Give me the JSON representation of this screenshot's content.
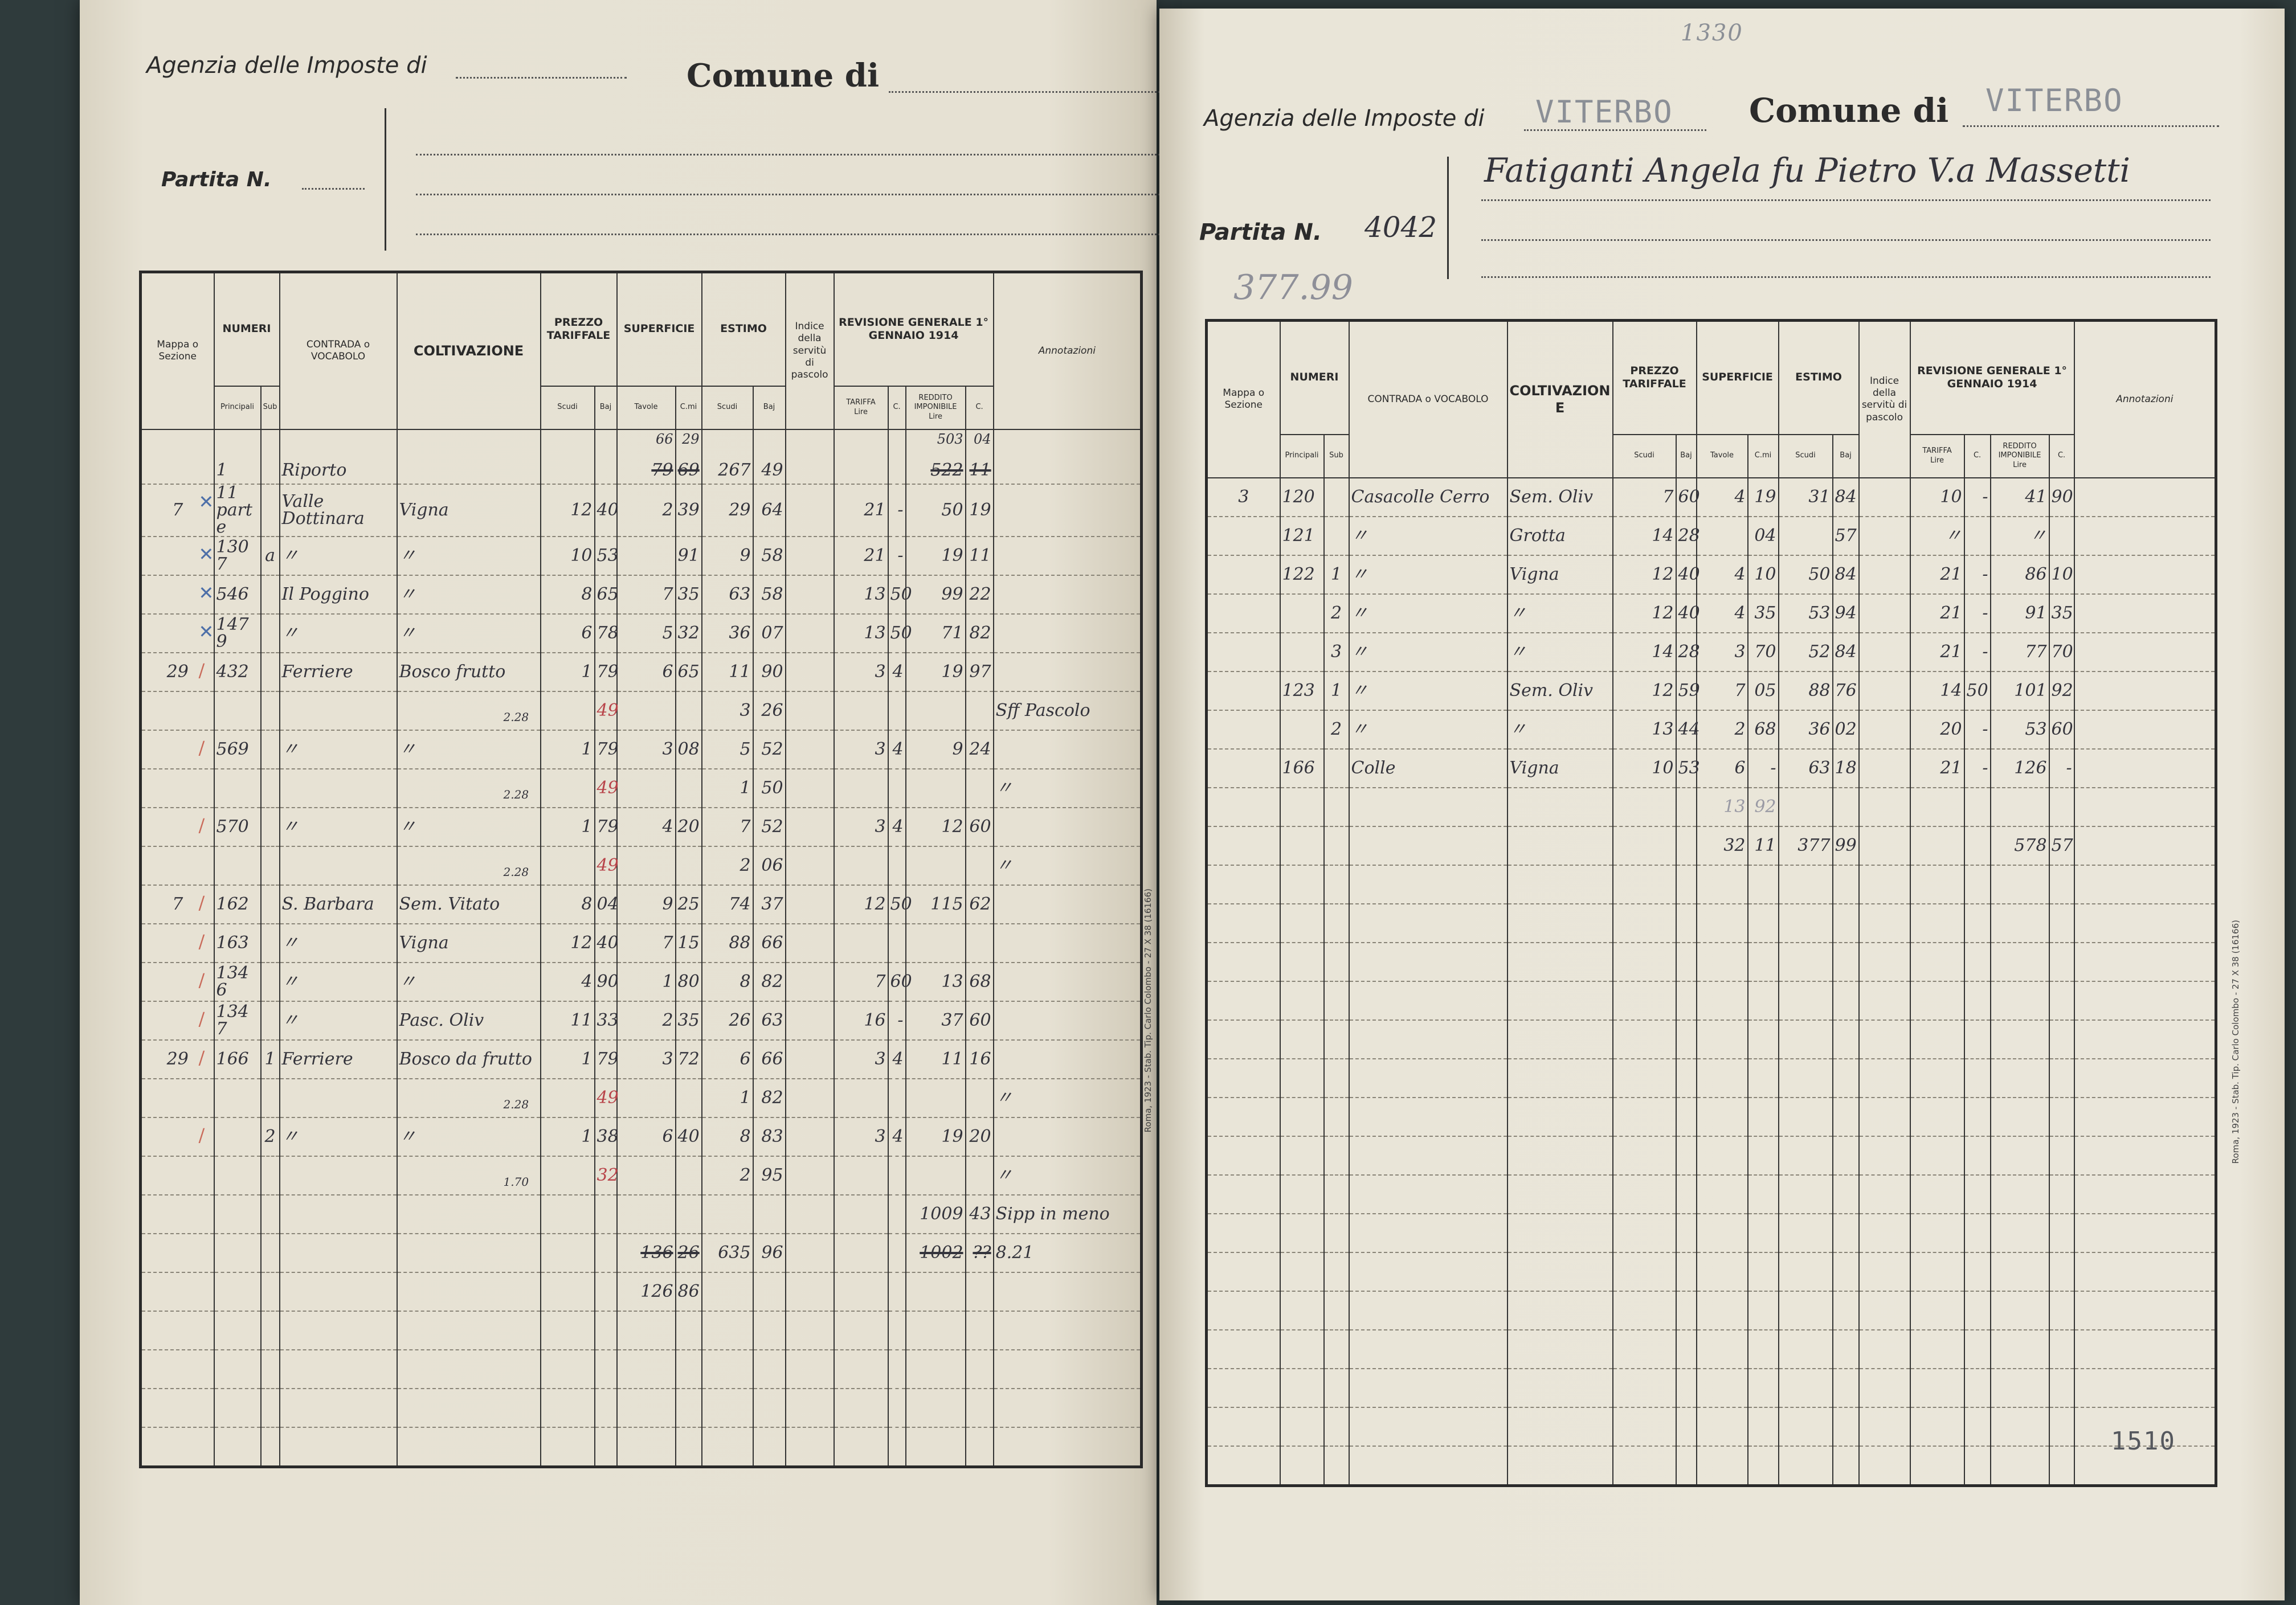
{
  "headers": {
    "mappa": "Mappa o Sezione",
    "numeri": "NUMERI",
    "principali": "Principali",
    "sub": "Sub",
    "contrada": "CONTRADA o VOCABOLO",
    "coltivazione": "COLTIVAZIONE",
    "prezzo": "PREZZO TARIFFALE",
    "superficie": "SUPERFICIE",
    "estimo": "ESTIMO",
    "scudi": "Scudi",
    "baj": "Baj",
    "tavole": "Tavole",
    "cmi": "C.mi",
    "indice": "Indice della servitù di pascolo",
    "revisione": "REVISIONE GENERALE 1° GENNAIO 1914",
    "tariffa": "TARIFFA",
    "reddito": "REDDITO IMPONIBILE",
    "lire": "Lire",
    "c": "C.",
    "annotazioni": "Annotazioni"
  },
  "left_page": {
    "agenzia_label": "Agenzia delle Imposte di",
    "comune_label": "Comune di",
    "partita_label": "Partita N.",
    "colophon": "Roma, 1923 - Stab. Tip. Carlo Colombo - 27 X 38 (16166)",
    "rows": [
      {
        "principali": "1",
        "contrada": "Riporto",
        "sup_tavole": "79",
        "sup_cmi": "69",
        "estimo_scudi": "267",
        "estimo_baj": "49",
        "reddito_lire": "522",
        "reddito_c": "11",
        "struck": [
          "sup_tavole",
          "sup_cmi",
          "reddito_lire",
          "reddito_c"
        ],
        "above": {
          "sup_tavole": "66",
          "sup_cmi": "29",
          "reddito_lire": "503",
          "reddito_c": "04"
        }
      },
      {
        "mark": "blue-cross",
        "mappa": "7",
        "principali": "11 parte",
        "contrada": "Valle Dottinara",
        "coltivazione": "Vigna",
        "prezzo_scudi": "12",
        "prezzo_baj": "40",
        "sup_tavole": "2",
        "sup_cmi": "39",
        "estimo_scudi": "29",
        "estimo_baj": "64",
        "tariffa_lire": "21",
        "tariffa_c": "-",
        "reddito_lire": "50",
        "reddito_c": "19"
      },
      {
        "mark": "blue-cross",
        "principali": "1307",
        "sub": "a",
        "contrada": "〃",
        "coltivazione": "〃",
        "prezzo_scudi": "10",
        "prezzo_baj": "53",
        "sup_cmi": "91",
        "estimo_scudi": "9",
        "estimo_baj": "58",
        "tariffa_lire": "21",
        "tariffa_c": "-",
        "reddito_lire": "19",
        "reddito_c": "11"
      },
      {
        "mark": "blue-cross",
        "principali": "546",
        "contrada": "Il Poggino",
        "coltivazione": "〃",
        "prezzo_scudi": "8",
        "prezzo_baj": "65",
        "sup_tavole": "7",
        "sup_cmi": "35",
        "estimo_scudi": "63",
        "estimo_baj": "58",
        "tariffa_lire": "13",
        "tariffa_c": "50",
        "reddito_lire": "99",
        "reddito_c": "22"
      },
      {
        "mark": "blue-cross",
        "principali": "1479",
        "contrada": "〃",
        "coltivazione": "〃",
        "prezzo_scudi": "6",
        "prezzo_baj": "78",
        "sup_tavole": "5",
        "sup_cmi": "32",
        "estimo_scudi": "36",
        "estimo_baj": "07",
        "tariffa_lire": "13",
        "tariffa_c": "50",
        "reddito_lire": "71",
        "reddito_c": "82"
      },
      {
        "mark": "red-tick",
        "mappa": "29",
        "principali": "432",
        "contrada": "Ferriere",
        "coltivazione": "Bosco frutto",
        "prezzo_scudi": "1",
        "prezzo_baj": "79",
        "sup_tavole": "6",
        "sup_cmi": "65",
        "estimo_scudi": "11",
        "estimo_baj": "90",
        "tariffa_lire": "3",
        "tariffa_c": "4",
        "reddito_lire": "19",
        "reddito_c": "97"
      },
      {
        "prezzo_note": "2.28",
        "prezzo_baj": "49",
        "red": [
          "prezzo_baj"
        ],
        "estimo_scudi": "3",
        "estimo_baj": "26",
        "annotazioni": "Sff Pascolo"
      },
      {
        "mark": "red-tick",
        "principali": "569",
        "contrada": "〃",
        "coltivazione": "〃",
        "prezzo_scudi": "1",
        "prezzo_baj": "79",
        "sup_tavole": "3",
        "sup_cmi": "08",
        "estimo_scudi": "5",
        "estimo_baj": "52",
        "tariffa_lire": "3",
        "tariffa_c": "4",
        "reddito_lire": "9",
        "reddito_c": "24"
      },
      {
        "prezzo_note": "2.28",
        "prezzo_baj": "49",
        "red": [
          "prezzo_baj"
        ],
        "estimo_scudi": "1",
        "estimo_baj": "50",
        "annotazioni": "〃"
      },
      {
        "mark": "red-tick",
        "principali": "570",
        "contrada": "〃",
        "coltivazione": "〃",
        "prezzo_scudi": "1",
        "prezzo_baj": "79",
        "sup_tavole": "4",
        "sup_cmi": "20",
        "estimo_scudi": "7",
        "estimo_baj": "52",
        "tariffa_lire": "3",
        "tariffa_c": "4",
        "reddito_lire": "12",
        "reddito_c": "60"
      },
      {
        "prezzo_note": "2.28",
        "prezzo_baj": "49",
        "red": [
          "prezzo_baj"
        ],
        "estimo_scudi": "2",
        "estimo_baj": "06",
        "annotazioni": "〃"
      },
      {
        "mark": "red-tick",
        "mappa": "7",
        "principali": "162",
        "contrada": "S. Barbara",
        "coltivazione": "Sem. Vitato",
        "prezzo_scudi": "8",
        "prezzo_baj": "04",
        "sup_tavole": "9",
        "sup_cmi": "25",
        "estimo_scudi": "74",
        "estimo_baj": "37",
        "tariffa_lire": "12",
        "tariffa_c": "50",
        "reddito_lire": "115",
        "reddito_c": "62"
      },
      {
        "mark": "red-tick",
        "principali": "163",
        "contrada": "〃",
        "coltivazione": "Vigna",
        "prezzo_scudi": "12",
        "prezzo_baj": "40",
        "sup_tavole": "7",
        "sup_cmi": "15",
        "estimo_scudi": "88",
        "estimo_baj": "66"
      },
      {
        "mark": "red-tick",
        "principali": "1346",
        "contrada": "〃",
        "coltivazione": "〃",
        "prezzo_scudi": "4",
        "prezzo_baj": "90",
        "sup_tavole": "1",
        "sup_cmi": "80",
        "estimo_scudi": "8",
        "estimo_baj": "82",
        "tariffa_lire": "7",
        "tariffa_c": "60",
        "reddito_lire": "13",
        "reddito_c": "68"
      },
      {
        "mark": "red-tick",
        "principali": "1347",
        "contrada": "〃",
        "coltivazione": "Pasc. Oliv",
        "prezzo_scudi": "11",
        "prezzo_baj": "33",
        "sup_tavole": "2",
        "sup_cmi": "35",
        "estimo_scudi": "26",
        "estimo_baj": "63",
        "tariffa_lire": "16",
        "tariffa_c": "-",
        "reddito_lire": "37",
        "reddito_c": "60"
      },
      {
        "mark": "red-tick",
        "mappa": "29",
        "principali": "166",
        "sub": "1",
        "contrada": "Ferriere",
        "coltivazione": "Bosco da frutto",
        "prezzo_scudi": "1",
        "prezzo_baj": "79",
        "sup_tavole": "3",
        "sup_cmi": "72",
        "estimo_scudi": "6",
        "estimo_baj": "66",
        "tariffa_lire": "3",
        "tariffa_c": "4",
        "reddito_lire": "11",
        "reddito_c": "16"
      },
      {
        "prezzo_note": "2.28",
        "prezzo_baj": "49",
        "red": [
          "prezzo_baj"
        ],
        "estimo_scudi": "1",
        "estimo_baj": "82",
        "annotazioni": "〃"
      },
      {
        "mark": "red-tick",
        "sub": "2",
        "contrada": "〃",
        "coltivazione": "〃",
        "prezzo_scudi": "1",
        "prezzo_baj": "38",
        "sup_tavole": "6",
        "sup_cmi": "40",
        "estimo_scudi": "8",
        "estimo_baj": "83",
        "tariffa_lire": "3",
        "tariffa_c": "4",
        "reddito_lire": "19",
        "reddito_c": "20"
      },
      {
        "prezzo_note": "1.70",
        "prezzo_baj": "32",
        "red": [
          "prezzo_baj"
        ],
        "estimo_scudi": "2",
        "estimo_baj": "95",
        "annotazioni": "〃"
      },
      {
        "reddito_lire": "1009",
        "reddito_c": "43",
        "annotazioni": "Sipp in meno"
      },
      {
        "sup_tavole": "136",
        "sup_cmi": "26",
        "estimo_scudi": "635",
        "estimo_baj": "96",
        "reddito_lire": "1002",
        "reddito_c": "??",
        "annotazioni": "8.21",
        "struck": [
          "sup_tavole",
          "sup_cmi",
          "reddito_lire",
          "reddito_c"
        ]
      },
      {
        "sup_tavole": "126",
        "sup_cmi": "86"
      }
    ]
  },
  "right_page": {
    "agenzia_label": "Agenzia delle Imposte di",
    "agenzia_value": "VITERBO",
    "comune_label": "Comune di",
    "comune_value": "VITERBO",
    "top_note": "1330",
    "owner_name": "Fatiganti Angela fu Pietro V.a Massetti",
    "partita_label": "Partita N.",
    "partita_number": "4042",
    "estimo_note": "377.99",
    "page_number": "1510",
    "colophon": "Roma, 1923 - Stab. Tip. Carlo Colombo - 27 X 38 (16166)",
    "rows": [
      {
        "mappa": "3",
        "principali": "120",
        "contrada": "Casacolle Cerro",
        "coltivazione": "Sem. Oliv",
        "prezzo_scudi": "7",
        "prezzo_baj": "60",
        "sup_tavole": "4",
        "sup_cmi": "19",
        "estimo_scudi": "31",
        "estimo_baj": "84",
        "tariffa_lire": "10",
        "tariffa_c": "-",
        "reddito_lire": "41",
        "reddito_c": "90"
      },
      {
        "principali": "121",
        "contrada": "〃",
        "coltivazione": "Grotta",
        "prezzo_scudi": "14",
        "prezzo_baj": "28",
        "sup_cmi": "04",
        "estimo_baj": "57",
        "tariffa_lire": "〃",
        "reddito_lire": "〃"
      },
      {
        "principali": "122",
        "sub": "1",
        "contrada": "〃",
        "coltivazione": "Vigna",
        "prezzo_scudi": "12",
        "prezzo_baj": "40",
        "sup_tavole": "4",
        "sup_cmi": "10",
        "estimo_scudi": "50",
        "estimo_baj": "84",
        "tariffa_lire": "21",
        "tariffa_c": "-",
        "reddito_lire": "86",
        "reddito_c": "10"
      },
      {
        "sub": "2",
        "contrada": "〃",
        "coltivazione": "〃",
        "prezzo_scudi": "12",
        "prezzo_baj": "40",
        "sup_tavole": "4",
        "sup_cmi": "35",
        "estimo_scudi": "53",
        "estimo_baj": "94",
        "tariffa_lire": "21",
        "tariffa_c": "-",
        "reddito_lire": "91",
        "reddito_c": "35"
      },
      {
        "sub": "3",
        "contrada": "〃",
        "coltivazione": "〃",
        "prezzo_scudi": "14",
        "prezzo_baj": "28",
        "sup_tavole": "3",
        "sup_cmi": "70",
        "estimo_scudi": "52",
        "estimo_baj": "84",
        "tariffa_lire": "21",
        "tariffa_c": "-",
        "reddito_lire": "77",
        "reddito_c": "70"
      },
      {
        "principali": "123",
        "sub": "1",
        "contrada": "〃",
        "coltivazione": "Sem. Oliv",
        "prezzo_scudi": "12",
        "prezzo_baj": "59",
        "sup_tavole": "7",
        "sup_cmi": "05",
        "estimo_scudi": "88",
        "estimo_baj": "76",
        "tariffa_lire": "14",
        "tariffa_c": "50",
        "reddito_lire": "101",
        "reddito_c": "92"
      },
      {
        "sub": "2",
        "contrada": "〃",
        "coltivazione": "〃",
        "prezzo_scudi": "13",
        "prezzo_baj": "44",
        "sup_tavole": "2",
        "sup_cmi": "68",
        "estimo_scudi": "36",
        "estimo_baj": "02",
        "tariffa_lire": "20",
        "tariffa_c": "-",
        "reddito_lire": "53",
        "reddito_c": "60"
      },
      {
        "principali": "166",
        "contrada": "Colle",
        "coltivazione": "Vigna",
        "prezzo_scudi": "10",
        "prezzo_baj": "53",
        "sup_tavole": "6",
        "sup_cmi": "-",
        "estimo_scudi": "63",
        "estimo_baj": "18",
        "tariffa_lire": "21",
        "tariffa_c": "-",
        "reddito_lire": "126",
        "reddito_c": "-"
      },
      {
        "sup_tavole": "13",
        "sup_cmi": "92",
        "faint": true
      },
      {
        "sup_tavole": "32",
        "sup_cmi": "11",
        "estimo_scudi": "377",
        "estimo_baj": "99",
        "reddito_lire": "578",
        "reddito_c": "57"
      }
    ]
  },
  "colors": {
    "paper": "#e6e1d3",
    "ink": "#34343c",
    "red_pencil": "#b8444a",
    "blue_pencil": "#4d6fa8",
    "background": "#2f3b3c"
  }
}
